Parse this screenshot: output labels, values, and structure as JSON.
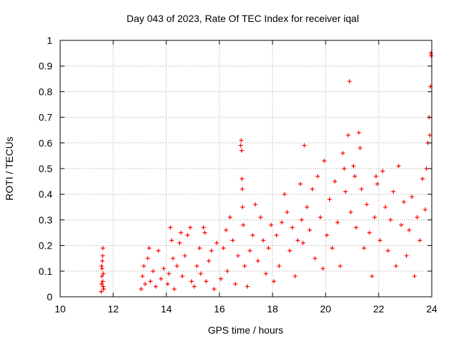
{
  "chart_data": {
    "type": "scatter",
    "title": "Day 043 of 2023, Rate Of TEC Index for receiver iqal",
    "xlabel": "GPS time / hours",
    "ylabel": "ROTI / TECUs",
    "xlim": [
      10,
      24
    ],
    "ylim": [
      0,
      1
    ],
    "xticks": [
      "10",
      "12",
      "14",
      "16",
      "18",
      "20",
      "22",
      "24"
    ],
    "yticks": [
      "0",
      "0.1",
      "0.2",
      "0.3",
      "0.4",
      "0.5",
      "0.6",
      "0.7",
      "0.8",
      "0.9",
      "1"
    ],
    "grid": true,
    "marker": "+",
    "color": "#ff0000",
    "series": [
      {
        "values": [
          [
            11.55,
            0.02
          ],
          [
            11.56,
            0.05
          ],
          [
            11.57,
            0.08
          ],
          [
            11.58,
            0.11
          ],
          [
            11.59,
            0.14
          ],
          [
            11.6,
            0.16
          ],
          [
            11.61,
            0.19
          ],
          [
            11.62,
            0.04
          ],
          [
            11.63,
            0.09
          ],
          [
            11.56,
            0.12
          ],
          [
            11.6,
            0.06
          ],
          [
            11.64,
            0.03
          ],
          [
            13.05,
            0.03
          ],
          [
            13.1,
            0.08
          ],
          [
            13.15,
            0.12
          ],
          [
            13.2,
            0.05
          ],
          [
            13.3,
            0.15
          ],
          [
            13.35,
            0.19
          ],
          [
            13.4,
            0.06
          ],
          [
            13.5,
            0.1
          ],
          [
            13.6,
            0.04
          ],
          [
            13.7,
            0.18
          ],
          [
            13.8,
            0.07
          ],
          [
            13.9,
            0.11
          ],
          [
            14.05,
            0.05
          ],
          [
            14.1,
            0.09
          ],
          [
            14.15,
            0.27
          ],
          [
            14.2,
            0.22
          ],
          [
            14.25,
            0.15
          ],
          [
            14.3,
            0.03
          ],
          [
            14.4,
            0.12
          ],
          [
            14.5,
            0.21
          ],
          [
            14.55,
            0.25
          ],
          [
            14.6,
            0.08
          ],
          [
            14.7,
            0.16
          ],
          [
            14.8,
            0.24
          ],
          [
            14.9,
            0.27
          ],
          [
            14.95,
            0.06
          ],
          [
            15.05,
            0.04
          ],
          [
            15.15,
            0.12
          ],
          [
            15.25,
            0.19
          ],
          [
            15.3,
            0.09
          ],
          [
            15.4,
            0.27
          ],
          [
            15.45,
            0.25
          ],
          [
            15.5,
            0.06
          ],
          [
            15.6,
            0.14
          ],
          [
            15.7,
            0.18
          ],
          [
            15.8,
            0.03
          ],
          [
            15.9,
            0.21
          ],
          [
            16.05,
            0.07
          ],
          [
            16.15,
            0.19
          ],
          [
            16.25,
            0.26
          ],
          [
            16.3,
            0.1
          ],
          [
            16.4,
            0.31
          ],
          [
            16.5,
            0.22
          ],
          [
            16.6,
            0.05
          ],
          [
            16.7,
            0.16
          ],
          [
            16.8,
            0.59
          ],
          [
            16.82,
            0.61
          ],
          [
            16.84,
            0.57
          ],
          [
            16.85,
            0.46
          ],
          [
            16.86,
            0.42
          ],
          [
            16.87,
            0.35
          ],
          [
            16.9,
            0.28
          ],
          [
            16.95,
            0.12
          ],
          [
            17.05,
            0.04
          ],
          [
            17.15,
            0.18
          ],
          [
            17.25,
            0.24
          ],
          [
            17.35,
            0.36
          ],
          [
            17.45,
            0.14
          ],
          [
            17.55,
            0.31
          ],
          [
            17.65,
            0.22
          ],
          [
            17.75,
            0.09
          ],
          [
            17.85,
            0.19
          ],
          [
            17.95,
            0.28
          ],
          [
            18.05,
            0.06
          ],
          [
            18.15,
            0.24
          ],
          [
            18.25,
            0.12
          ],
          [
            18.35,
            0.29
          ],
          [
            18.45,
            0.4
          ],
          [
            18.55,
            0.33
          ],
          [
            18.65,
            0.18
          ],
          [
            18.75,
            0.27
          ],
          [
            18.85,
            0.08
          ],
          [
            18.95,
            0.22
          ],
          [
            19.05,
            0.44
          ],
          [
            19.1,
            0.3
          ],
          [
            19.15,
            0.21
          ],
          [
            19.2,
            0.59
          ],
          [
            19.3,
            0.35
          ],
          [
            19.4,
            0.26
          ],
          [
            19.5,
            0.42
          ],
          [
            19.6,
            0.15
          ],
          [
            19.7,
            0.47
          ],
          [
            19.8,
            0.31
          ],
          [
            19.9,
            0.11
          ],
          [
            19.95,
            0.53
          ],
          [
            20.05,
            0.24
          ],
          [
            20.15,
            0.38
          ],
          [
            20.25,
            0.19
          ],
          [
            20.35,
            0.45
          ],
          [
            20.45,
            0.29
          ],
          [
            20.55,
            0.12
          ],
          [
            20.65,
            0.56
          ],
          [
            20.7,
            0.5
          ],
          [
            20.75,
            0.41
          ],
          [
            20.85,
            0.63
          ],
          [
            20.9,
            0.84
          ],
          [
            20.95,
            0.33
          ],
          [
            21.05,
            0.51
          ],
          [
            21.1,
            0.47
          ],
          [
            21.15,
            0.27
          ],
          [
            21.25,
            0.64
          ],
          [
            21.3,
            0.58
          ],
          [
            21.35,
            0.42
          ],
          [
            21.45,
            0.19
          ],
          [
            21.55,
            0.36
          ],
          [
            21.65,
            0.25
          ],
          [
            21.75,
            0.08
          ],
          [
            21.85,
            0.31
          ],
          [
            21.9,
            0.47
          ],
          [
            21.95,
            0.44
          ],
          [
            22.05,
            0.22
          ],
          [
            22.15,
            0.49
          ],
          [
            22.25,
            0.35
          ],
          [
            22.35,
            0.18
          ],
          [
            22.45,
            0.3
          ],
          [
            22.55,
            0.41
          ],
          [
            22.65,
            0.12
          ],
          [
            22.75,
            0.51
          ],
          [
            22.85,
            0.28
          ],
          [
            22.95,
            0.37
          ],
          [
            23.05,
            0.16
          ],
          [
            23.15,
            0.26
          ],
          [
            23.25,
            0.39
          ],
          [
            23.35,
            0.08
          ],
          [
            23.45,
            0.31
          ],
          [
            23.55,
            0.22
          ],
          [
            23.65,
            0.46
          ],
          [
            23.75,
            0.34
          ],
          [
            23.8,
            0.5
          ],
          [
            23.85,
            0.6
          ],
          [
            23.9,
            0.7
          ],
          [
            23.93,
            0.63
          ],
          [
            23.95,
            0.82
          ],
          [
            23.97,
            0.95
          ],
          [
            23.98,
            0.94
          ]
        ]
      }
    ]
  }
}
